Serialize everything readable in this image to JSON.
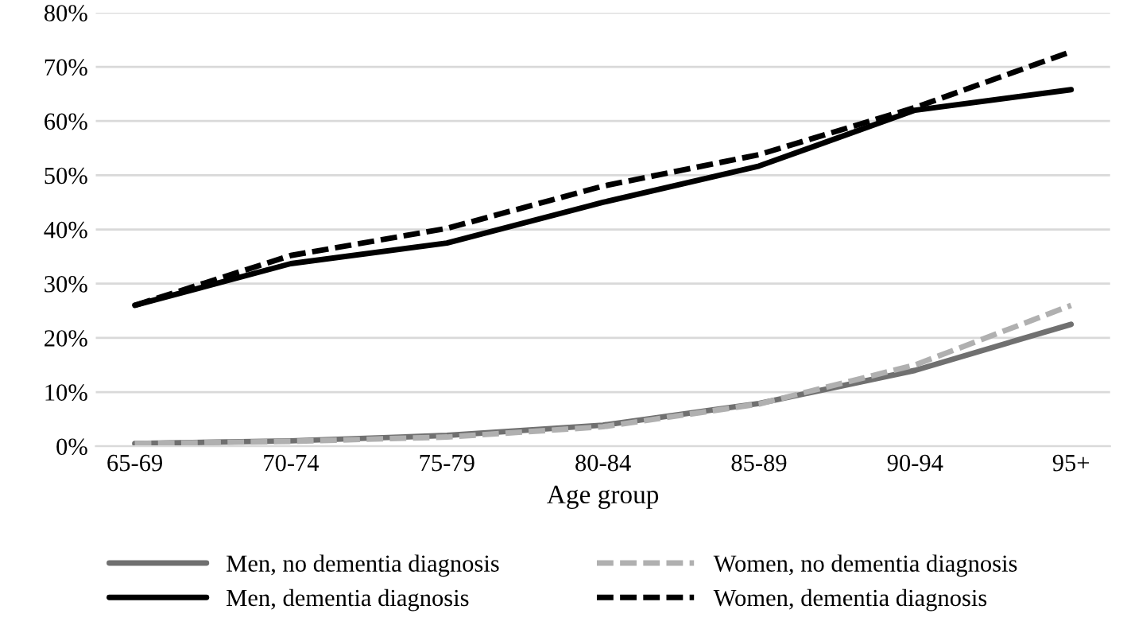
{
  "chart_data": {
    "type": "line",
    "xlabel": "Age group",
    "categories": [
      "65-69",
      "70-74",
      "75-79",
      "80-84",
      "85-89",
      "90-94",
      "95+"
    ],
    "series": [
      {
        "name": "Men, no dementia diagnosis",
        "color": "#707070",
        "line_style": "solid",
        "values": [
          0.5,
          1,
          2,
          3.9,
          7.9,
          14,
          22.5
        ]
      },
      {
        "name": "Men, dementia diagnosis",
        "color": "#000000",
        "line_style": "solid",
        "values": [
          26,
          33.7,
          37.5,
          45,
          51.7,
          62,
          65.8
        ]
      },
      {
        "name": "Women, no dementia diagnosis",
        "color": "#b0b0b0",
        "line_style": "dashed",
        "values": [
          0.5,
          0.9,
          1.7,
          3.6,
          7.8,
          15,
          26
        ]
      },
      {
        "name": "Women, dementia diagnosis",
        "color": "#000000",
        "line_style": "dashed",
        "values": [
          26,
          35.2,
          40.2,
          48,
          53.8,
          62.5,
          72.8
        ]
      }
    ],
    "ylim": [
      0,
      80
    ],
    "yticks": [
      {
        "value": 0,
        "label": "0%"
      },
      {
        "value": 10,
        "label": "10%"
      },
      {
        "value": 20,
        "label": "20%"
      },
      {
        "value": 30,
        "label": "30%"
      },
      {
        "value": 40,
        "label": "40%"
      },
      {
        "value": 50,
        "label": "50%"
      },
      {
        "value": 60,
        "label": "60%"
      },
      {
        "value": 70,
        "label": "70%"
      },
      {
        "value": 80,
        "label": "80%"
      }
    ],
    "grid": "y",
    "legend": "bottom"
  }
}
